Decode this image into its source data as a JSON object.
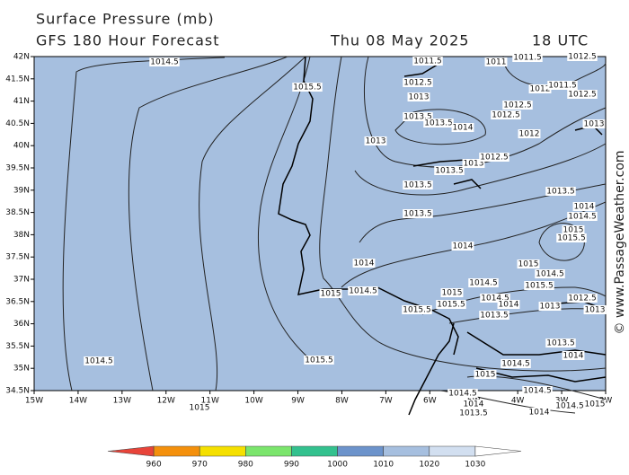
{
  "header": {
    "title": "Surface Pressure (mb)",
    "subtitle": "GFS 180 Hour Forecast",
    "date": "Thu 08 May 2025",
    "time": "18 UTC"
  },
  "axes": {
    "lat_labels": [
      "42N",
      "41.5N",
      "41N",
      "40.5N",
      "40N",
      "39.5N",
      "39N",
      "38.5N",
      "38N",
      "37.5N",
      "37N",
      "36.5N",
      "36N",
      "35.5N",
      "35N",
      "34.5N"
    ],
    "lon_labels": [
      "15W",
      "14W",
      "13W",
      "12W",
      "11W",
      "10W",
      "9W",
      "8W",
      "7W",
      "6W",
      "5W",
      "4W",
      "3W",
      "2W"
    ]
  },
  "contour_labels": [
    "1014.5",
    "1015.5",
    "1014.5",
    "1015",
    "1015.5",
    "1015",
    "1014.5",
    "1014",
    "1013.5",
    "1013.5",
    "1013.5",
    "1013.5",
    "1013.5",
    "1014",
    "1013",
    "1013",
    "1013",
    "1012.5",
    "1011.5",
    "1011",
    "1011.5",
    "1012.5",
    "1012",
    "1011.5",
    "1012.5",
    "1012.5",
    "1012.5",
    "1012",
    "1012.5",
    "1013",
    "1013.5",
    "1014",
    "1014",
    "1014.5",
    "1015",
    "1015.5",
    "1015",
    "1014.5",
    "1015.5",
    "1014.5",
    "1015",
    "1015.5",
    "1014.5",
    "1014",
    "1013",
    "1012.5",
    "1013",
    "1013.5",
    "1015.5",
    "1013.5",
    "1014",
    "1014.5",
    "1015",
    "1014.5",
    "1014",
    "1013.5",
    "1014.5",
    "1014",
    "1014.5",
    "1015"
  ],
  "colorbar": {
    "labels": [
      960,
      970,
      980,
      990,
      1000,
      1010,
      1020,
      1030
    ],
    "colors": [
      "#e8443a",
      "#f4900c",
      "#f5e000",
      "#7be56c",
      "#33c18e",
      "#6c93cb",
      "#a6bfdf",
      "#d2dff0",
      "#ffffff"
    ]
  },
  "credit": "© www.PassageWeather.com"
}
